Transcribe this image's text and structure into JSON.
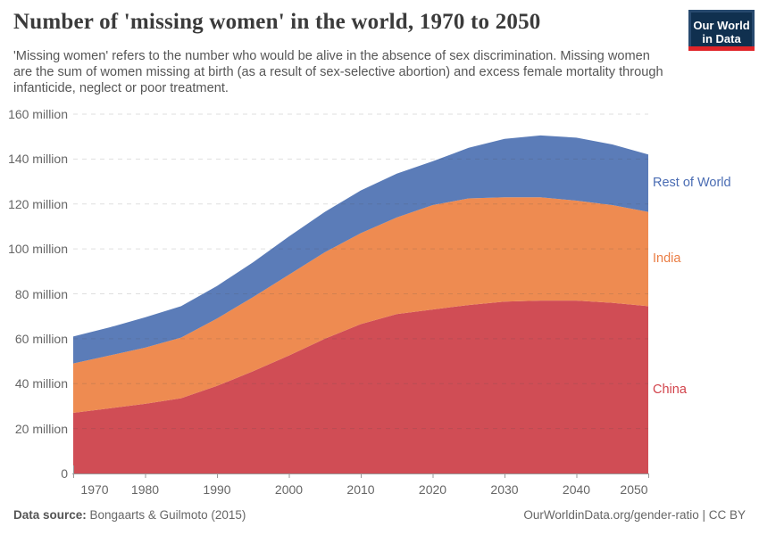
{
  "header": {
    "title": "Number of 'missing women' in the world, 1970 to 2050",
    "subtitle": "'Missing women' refers to the number who would be alive in the absence of sex discrimination. Missing women are the sum of women missing at birth (as a result of sex-selective abortion) and excess female mortality through infanticide, neglect or poor treatment.",
    "logo": {
      "line1": "Our World",
      "line2": "in Data",
      "bg_color": "#10304f",
      "border_color": "#27496e",
      "stripe_color": "#e02428"
    }
  },
  "chart_data": {
    "type": "area",
    "stacked": true,
    "title": "Number of 'missing women' in the world, 1970 to 2050",
    "xlabel": "",
    "ylabel": "",
    "x": [
      1970,
      1975,
      1980,
      1985,
      1990,
      1995,
      2000,
      2005,
      2010,
      2015,
      2020,
      2025,
      2030,
      2035,
      2040,
      2045,
      2050
    ],
    "series": [
      {
        "name": "China",
        "color": "#d04d55",
        "label_color": "#d2434b",
        "values": [
          27,
          29,
          31,
          33.5,
          39,
          45.5,
          52.5,
          60,
          66.5,
          71,
          73,
          75,
          76.5,
          77,
          77,
          76,
          74.5
        ]
      },
      {
        "name": "India",
        "color": "#ee8b51",
        "label_color": "#ea7e45",
        "values": [
          22,
          23.5,
          25,
          27,
          30,
          33,
          36,
          38.5,
          40.5,
          43,
          46.5,
          47.5,
          46.5,
          46,
          44.5,
          43.5,
          42
        ]
      },
      {
        "name": "Rest of World",
        "color": "#5b7cb8",
        "label_color": "#4a6cb3",
        "values": [
          12,
          12.5,
          13.5,
          14,
          14.5,
          15.5,
          17,
          18,
          19,
          19.5,
          19.5,
          22.5,
          26,
          27.5,
          28,
          27,
          25.5
        ]
      }
    ],
    "ylim": [
      0,
      160
    ],
    "yticks": [
      {
        "value": 0,
        "label": "0"
      },
      {
        "value": 20,
        "label": "20 million"
      },
      {
        "value": 40,
        "label": "40 million"
      },
      {
        "value": 60,
        "label": "60 million"
      },
      {
        "value": 80,
        "label": "80 million"
      },
      {
        "value": 100,
        "label": "100 million"
      },
      {
        "value": 120,
        "label": "120 million"
      },
      {
        "value": 140,
        "label": "140 million"
      },
      {
        "value": 160,
        "label": "160 million"
      }
    ],
    "xticks": [
      1970,
      1980,
      1990,
      2000,
      2010,
      2020,
      2030,
      2040,
      2050
    ],
    "grid": "horizontal-dashed",
    "grid_color": "#dcdcdc",
    "axis_color": "#999999",
    "legend_position": "right"
  },
  "footer": {
    "source_label": "Data source:",
    "source_value": " Bongaarts & Guilmoto (2015)",
    "credit": "OurWorldinData.org/gender-ratio | CC BY"
  }
}
